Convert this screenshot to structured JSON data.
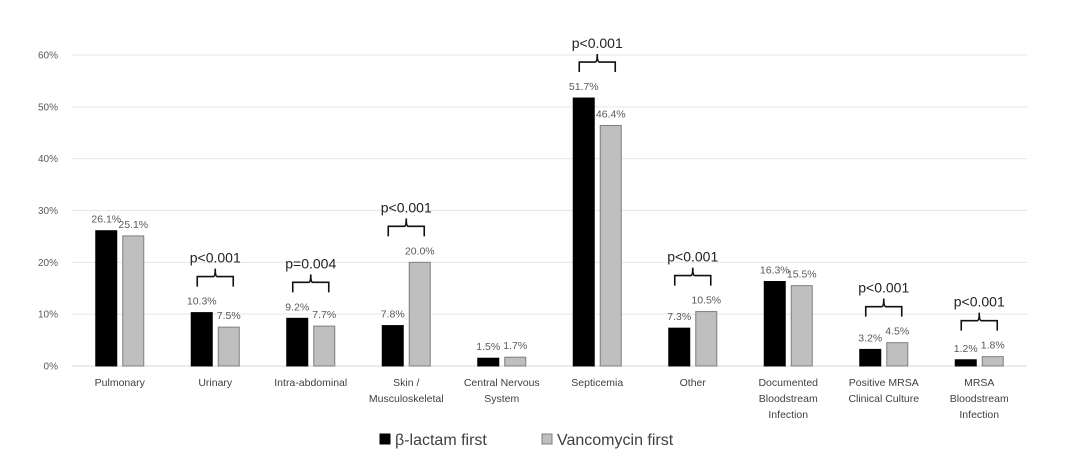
{
  "chart_data": {
    "type": "bar",
    "title": "",
    "xlabel": "",
    "ylabel": "",
    "ylim": [
      0,
      60
    ],
    "yticks": [
      "0%",
      "10%",
      "20%",
      "30%",
      "40%",
      "50%",
      "60%"
    ],
    "grid": true,
    "legend_position": "bottom",
    "categories": [
      [
        "Pulmonary"
      ],
      [
        "Urinary"
      ],
      [
        "Intra-abdominal"
      ],
      [
        "Skin /",
        "Musculoskeletal"
      ],
      [
        "Central Nervous",
        "System"
      ],
      [
        "Septicemia"
      ],
      [
        "Other"
      ],
      [
        "Documented",
        "Bloodstream",
        "Infection"
      ],
      [
        "Positive MRSA",
        "Clinical Culture"
      ],
      [
        "MRSA",
        "Bloodstream",
        "Infection"
      ]
    ],
    "series": [
      {
        "name": "β-lactam first",
        "color": "#000000",
        "values": [
          26.1,
          10.3,
          9.2,
          7.8,
          1.5,
          51.7,
          7.3,
          16.3,
          3.2,
          1.2
        ],
        "labels": [
          "26.1%",
          "10.3%",
          "9.2%",
          "7.8%",
          "1.5%",
          "51.7%",
          "7.3%",
          "16.3%",
          "3.2%",
          "1.2%"
        ]
      },
      {
        "name": "Vancomycin first",
        "color": "#bfbfbf",
        "values": [
          25.1,
          7.5,
          7.7,
          20.0,
          1.7,
          46.4,
          10.5,
          15.5,
          4.5,
          1.8
        ],
        "labels": [
          "25.1%",
          "7.5%",
          "7.7%",
          "20.0%",
          "1.7%",
          "46.4%",
          "10.5%",
          "15.5%",
          "4.5%",
          "1.8%"
        ]
      }
    ],
    "annotations": [
      "",
      "p<0.001",
      "p=0.004",
      "p<0.001",
      "",
      "p<0.001",
      "p<0.001",
      "",
      "p<0.001",
      "p<0.001"
    ]
  }
}
